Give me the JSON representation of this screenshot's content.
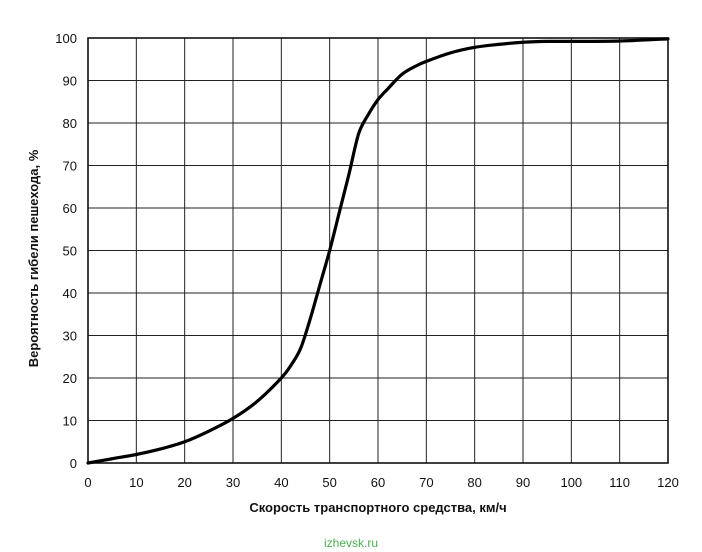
{
  "chart_data": {
    "type": "line",
    "title": "",
    "xlabel": "Скорость транспортного средства, км/ч",
    "ylabel": "Вероятность гибели пешехода, %",
    "xlim": [
      0,
      120
    ],
    "ylim": [
      0,
      100
    ],
    "x_ticks": [
      0,
      10,
      20,
      30,
      40,
      50,
      60,
      70,
      80,
      90,
      100,
      110,
      120
    ],
    "y_ticks": [
      0,
      10,
      20,
      30,
      40,
      50,
      60,
      70,
      80,
      90,
      100
    ],
    "grid": true,
    "legend": "none",
    "series": [
      {
        "color": "#000000",
        "x": [
          0,
          5,
          10,
          15,
          20,
          25,
          30,
          35,
          40,
          42,
          44,
          46,
          48,
          50,
          52,
          54,
          56,
          58,
          60,
          62,
          65,
          68,
          70,
          75,
          80,
          85,
          90,
          95,
          100,
          110,
          120
        ],
        "y": [
          0,
          1,
          2,
          3.3,
          5,
          7.5,
          10.5,
          14.5,
          20,
          23,
          27,
          34,
          42,
          50,
          59,
          68,
          77.5,
          82,
          85.5,
          88,
          91.5,
          93.5,
          94.5,
          96.5,
          97.8,
          98.5,
          99,
          99.2,
          99.2,
          99.3,
          99.8
        ]
      }
    ]
  },
  "watermark": "izhevsk.ru"
}
